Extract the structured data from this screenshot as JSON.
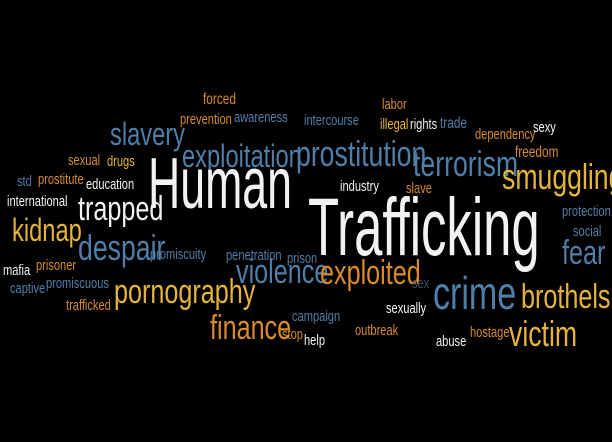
{
  "words": {
    "human": "Human",
    "trafficking": "Trafficking",
    "slavery": "slavery",
    "exploitation": "exploitation",
    "prostitution": "prostitution",
    "terrorism": "terrorism",
    "smuggling": "smuggling",
    "trapped": "trapped",
    "kidnap": "kidnap",
    "despair": "despair",
    "violence": "violence",
    "exploited": "exploited",
    "crime": "crime",
    "brothels": "brothels",
    "fear": "fear",
    "pornography": "pornography",
    "finance": "finance",
    "victim": "victim",
    "forced": "forced",
    "awareness": "awareness",
    "prevention": "prevention",
    "intercourse": "intercourse",
    "labor": "labor",
    "illegal": "illegal",
    "rights": "rights",
    "trade": "trade",
    "dependency": "dependency",
    "sexy": "sexy",
    "freedom": "freedom",
    "sexual": "sexual",
    "drugs": "drugs",
    "std": "std",
    "prostitute": "prostitute",
    "education": "education",
    "industry": "industry",
    "slave": "slave",
    "international": "international",
    "protection": "protection",
    "social": "social",
    "promiscuity": "promiscuity",
    "penetration": "penetration",
    "prison": "prison",
    "mafia": "mafia",
    "prisoner": "prisoner",
    "sex": "sex",
    "captive": "captive",
    "promiscuous": "promiscuous",
    "campaign": "campaign",
    "sexually": "sexually",
    "trafficked": "trafficked",
    "stop": "stop",
    "help": "help",
    "outbreak": "outbreak",
    "abuse": "abuse",
    "hostage": "hostage"
  }
}
